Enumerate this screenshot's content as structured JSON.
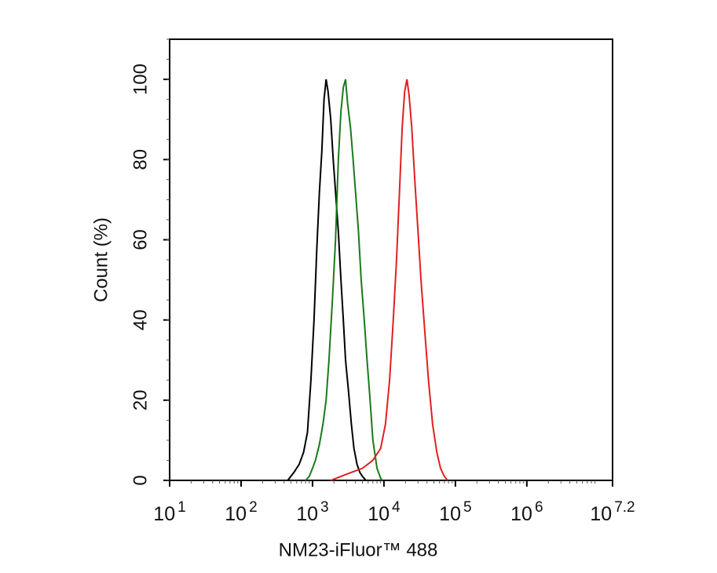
{
  "chart_data": {
    "type": "line",
    "x_label": "NM23-iFluor™ 488",
    "y_label": "Count  (%)",
    "x_scale": "log",
    "xlim": [
      10,
      15848931.92
    ],
    "ylim": [
      0,
      110
    ],
    "xticks": [
      {
        "value": 10,
        "label": "10",
        "exponent": "1"
      },
      {
        "value": 100,
        "label": "10",
        "exponent": "2"
      },
      {
        "value": 1000,
        "label": "10",
        "exponent": "3"
      },
      {
        "value": 10000,
        "label": "10",
        "exponent": "4"
      },
      {
        "value": 100000,
        "label": "10",
        "exponent": "5"
      },
      {
        "value": 1000000,
        "label": "10",
        "exponent": "6"
      },
      {
        "value": 15848931.92,
        "label": "10",
        "exponent": "7.2"
      }
    ],
    "yticks": [
      0,
      20,
      40,
      60,
      80,
      100
    ],
    "series": [
      {
        "color": "#000000",
        "x": [
          450,
          550,
          650,
          750,
          850,
          950,
          1050,
          1150,
          1250,
          1350,
          1450,
          1550,
          1650,
          1800,
          1950,
          2100,
          2300,
          2500,
          2700,
          2900,
          3200,
          3500,
          3800,
          4200,
          4600,
          5000,
          5600
        ],
        "values": [
          0,
          2,
          4,
          7,
          12,
          25,
          40,
          58,
          72,
          82,
          95,
          100,
          97,
          90,
          80,
          72,
          62,
          50,
          40,
          30,
          22,
          14,
          8,
          4,
          2,
          1,
          0
        ]
      },
      {
        "color": "#1a7a1a",
        "x": [
          800,
          900,
          1000,
          1100,
          1250,
          1400,
          1550,
          1700,
          1900,
          2100,
          2300,
          2500,
          2700,
          2900,
          3100,
          3400,
          3700,
          4000,
          4400,
          4800,
          5300,
          5800,
          6400,
          7000,
          8000,
          9000,
          9500
        ],
        "values": [
          0,
          1,
          3,
          5,
          9,
          14,
          20,
          30,
          45,
          60,
          80,
          92,
          98,
          100,
          94,
          88,
          80,
          72,
          62,
          50,
          40,
          30,
          20,
          10,
          3,
          0.5,
          0
        ]
      },
      {
        "color": "#e02020",
        "x": [
          1800,
          2500,
          3500,
          5000,
          7000,
          9000,
          10500,
          12000,
          13500,
          15000,
          16500,
          18000,
          19500,
          21000,
          22500,
          24500,
          27000,
          30000,
          33000,
          37000,
          42000,
          48000,
          55000,
          62000,
          70000,
          78000
        ],
        "values": [
          0,
          1,
          2,
          3,
          5,
          8,
          14,
          25,
          40,
          55,
          72,
          88,
          97,
          100,
          96,
          88,
          75,
          62,
          50,
          38,
          25,
          14,
          7,
          3,
          1,
          0
        ]
      }
    ]
  }
}
